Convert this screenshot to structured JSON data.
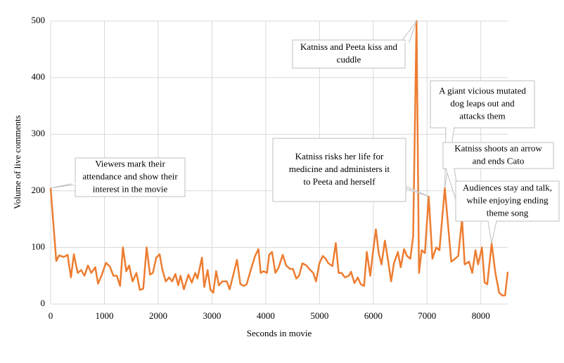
{
  "chart_data": {
    "type": "line",
    "xlabel": "Seconds in movie",
    "ylabel": "Volume of live comments",
    "x": [
      0,
      105,
      158,
      242,
      315,
      378,
      431,
      504,
      567,
      630,
      693,
      756,
      830,
      882,
      945,
      1029,
      1103,
      1166,
      1229,
      1292,
      1344,
      1407,
      1460,
      1523,
      1596,
      1659,
      1722,
      1785,
      1848,
      1901,
      1964,
      2027,
      2079,
      2142,
      2205,
      2258,
      2321,
      2373,
      2415,
      2478,
      2562,
      2625,
      2688,
      2730,
      2814,
      2856,
      2919,
      2972,
      3024,
      3077,
      3129,
      3192,
      3276,
      3329,
      3465,
      3528,
      3591,
      3644,
      3738,
      3801,
      3864,
      3906,
      3959,
      4022,
      4064,
      4116,
      4179,
      4242,
      4316,
      4379,
      4452,
      4505,
      4568,
      4620,
      4683,
      4757,
      4809,
      4883,
      4935,
      4998,
      5061,
      5114,
      5166,
      5240,
      5303,
      5355,
      5411,
      5470,
      5544,
      5586,
      5649,
      5712,
      5765,
      5828,
      5880,
      5943,
      5985,
      6048,
      6101,
      6153,
      6216,
      6269,
      6332,
      6384,
      6458,
      6510,
      6573,
      6626,
      6689,
      6741,
      6804,
      6850,
      6900,
      6960,
      7030,
      7100,
      7170,
      7230,
      7330,
      7450,
      7520,
      7580,
      7650,
      7700,
      7780,
      7840,
      7900,
      7950,
      8020,
      8070,
      8120,
      8200,
      8270,
      8340,
      8400,
      8450,
      8500
    ],
    "series": [
      {
        "color": "#ed7d31",
        "values": [
          205,
          76,
          86,
          83,
          87,
          47,
          88,
          55,
          60,
          50,
          68,
          55,
          65,
          36,
          50,
          73,
          66,
          50,
          50,
          32,
          100,
          58,
          68,
          40,
          55,
          25,
          27,
          100,
          52,
          55,
          82,
          88,
          60,
          40,
          47,
          40,
          53,
          33,
          50,
          26,
          52,
          38,
          55,
          45,
          82,
          30,
          60,
          25,
          20,
          58,
          33,
          40,
          40,
          26,
          78,
          35,
          32,
          35,
          65,
          85,
          97,
          55,
          58,
          55,
          87,
          92,
          55,
          65,
          87,
          68,
          62,
          62,
          45,
          50,
          72,
          68,
          62,
          55,
          40,
          72,
          85,
          80,
          72,
          67,
          108,
          55,
          55,
          47,
          50,
          57,
          37,
          47,
          35,
          32,
          92,
          50,
          85,
          132,
          90,
          70,
          112,
          80,
          40,
          72,
          92,
          65,
          97,
          85,
          80,
          120,
          500,
          55,
          95,
          90,
          190,
          80,
          100,
          95,
          205,
          75,
          80,
          85,
          150,
          70,
          75,
          55,
          95,
          70,
          100,
          38,
          35,
          107,
          55,
          20,
          15,
          15,
          57
        ]
      }
    ],
    "xlim": [
      0,
      8500
    ],
    "xticks": [
      0,
      1000,
      2000,
      3000,
      4000,
      5000,
      6000,
      7000,
      8000
    ],
    "ylim": [
      0,
      500
    ],
    "yticks": [
      0,
      100,
      200,
      300,
      400,
      500
    ],
    "grid": true,
    "annotations": [
      [
        "Viewers mark their",
        "attendance and show their",
        "interest in the movie"
      ],
      [
        "Katniss and Peeta kiss and",
        "cuddle"
      ],
      [
        "Katniss risks her life for",
        "medicine and administers it",
        "to Peeta and herself"
      ],
      [
        "A giant vicious mutated",
        "dog leaps out and",
        "attacks them"
      ],
      [
        "Katniss shoots an arrow",
        "and ends Cato"
      ],
      [
        "Audiences stay and talk,",
        "while enjoying ending",
        "theme song"
      ]
    ]
  }
}
